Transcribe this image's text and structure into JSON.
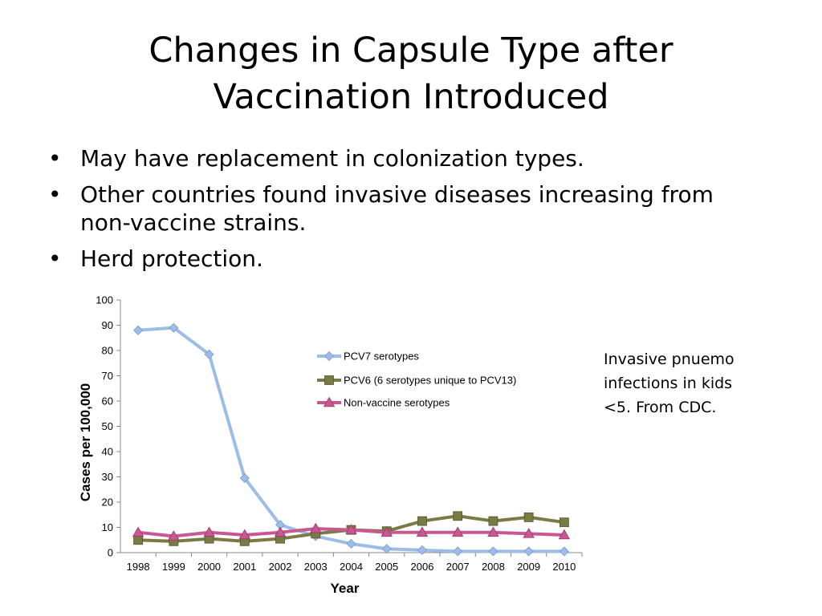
{
  "slide": {
    "title_line1": "Changes in Capsule Type after",
    "title_line2": "Vaccination Introduced",
    "bullets": [
      "May have replacement in colonization types.",
      "Other countries found invasive diseases increasing from non-vaccine strains.",
      "Herd protection."
    ],
    "bullet_char": "•",
    "note": "Invasive pnuemo infections in kids <5.  From CDC."
  },
  "chart_data": {
    "type": "line",
    "xlabel": "Year",
    "ylabel": "Cases per 100,000",
    "ylim": [
      0,
      100
    ],
    "yticks": [
      0,
      10,
      20,
      30,
      40,
      50,
      60,
      70,
      80,
      90,
      100
    ],
    "x": [
      "1998",
      "1999",
      "2000",
      "2001",
      "2002",
      "2003",
      "2004",
      "2005",
      "2006",
      "2007",
      "2008",
      "2009",
      "2010"
    ],
    "grid": false,
    "legend_position": "top-right",
    "series": [
      {
        "name": "PCV7 serotypes",
        "color": "#9DBCE8",
        "marker": "diamond",
        "values": [
          88,
          89,
          78.5,
          29.5,
          11,
          6.5,
          3.5,
          1.5,
          1,
          0.5,
          0.5,
          0.5,
          0.5
        ]
      },
      {
        "name": "PCV6 (6 serotypes unique to PCV13)",
        "color": "#7A7A45",
        "marker": "square",
        "values": [
          5,
          4.5,
          5.5,
          4.5,
          5.5,
          7.5,
          9,
          8.5,
          12.5,
          14.5,
          12.5,
          14,
          12
        ]
      },
      {
        "name": "Non-vaccine serotypes",
        "color": "#C85891",
        "marker": "triangle",
        "values": [
          8,
          6.5,
          8,
          7,
          8,
          9.5,
          9,
          8,
          8,
          8,
          8,
          7.5,
          7
        ]
      }
    ]
  }
}
